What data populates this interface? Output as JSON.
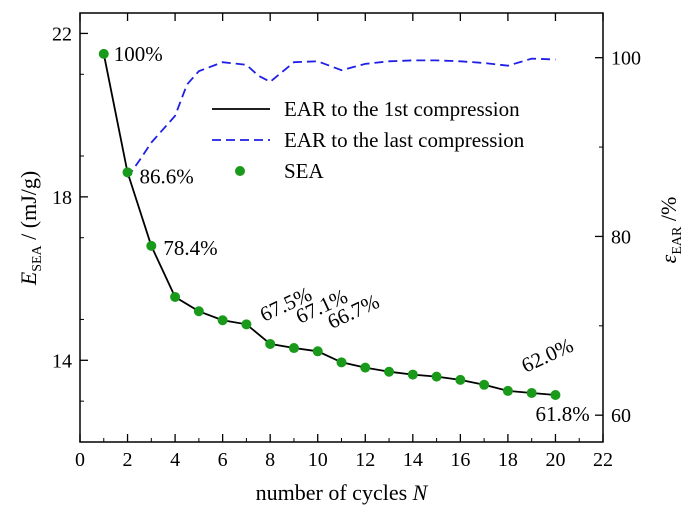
{
  "chart_data": {
    "type": "line",
    "title": "",
    "xlabel": {
      "text": "number of cycles ",
      "var": "N"
    },
    "ylabel_left": {
      "var": "E",
      "sub": "SEA",
      "rest": " / (mJ/g)"
    },
    "ylabel_right": {
      "var": "ε",
      "sub": "EAR",
      "rest": " /%"
    },
    "xlim": [
      0,
      22
    ],
    "ylim_left": [
      12,
      22.5
    ],
    "ylim_right": [
      57,
      105
    ],
    "x_ticks": [
      0,
      2,
      4,
      6,
      8,
      10,
      12,
      14,
      16,
      18,
      20,
      22
    ],
    "y_left_ticks": [
      14,
      18,
      22
    ],
    "y_right_ticks": [
      60,
      80,
      100
    ],
    "series": [
      {
        "name": "EAR to the 1st compression",
        "axis": "left",
        "style": "solid",
        "color": "#000000",
        "x": [
          1,
          2,
          3,
          4,
          5,
          6,
          7,
          8,
          9,
          10,
          11,
          12,
          13,
          14,
          15,
          16,
          17,
          18,
          19,
          20
        ],
        "y": [
          21.5,
          18.6,
          16.8,
          15.55,
          15.2,
          14.98,
          14.88,
          14.4,
          14.3,
          14.22,
          13.95,
          13.82,
          13.72,
          13.65,
          13.6,
          13.52,
          13.4,
          13.25,
          13.2,
          13.15
        ]
      },
      {
        "name": "EAR to the last compression",
        "axis": "right",
        "style": "dashed",
        "color": "#1f1fe6",
        "x": [
          2,
          2.5,
          3,
          3.5,
          4,
          4.5,
          5,
          6,
          7,
          7.5,
          8,
          9,
          10,
          11,
          12,
          13,
          14,
          15,
          16,
          17,
          18,
          19,
          20
        ],
        "y": [
          86.6,
          88.5,
          90.5,
          92.0,
          93.5,
          97.0,
          98.5,
          99.5,
          99.2,
          98.0,
          97.3,
          99.5,
          99.6,
          98.6,
          99.3,
          99.6,
          99.7,
          99.7,
          99.6,
          99.4,
          99.1,
          99.9,
          99.8
        ]
      },
      {
        "name": "SEA",
        "axis": "left",
        "style": "markers",
        "color": "#1a9a1a",
        "x": [
          1,
          2,
          3,
          4,
          5,
          6,
          7,
          8,
          9,
          10,
          11,
          12,
          13,
          14,
          15,
          16,
          17,
          18,
          19,
          20
        ],
        "y": [
          21.5,
          18.6,
          16.8,
          15.55,
          15.2,
          14.98,
          14.88,
          14.4,
          14.3,
          14.22,
          13.95,
          13.82,
          13.72,
          13.65,
          13.6,
          13.52,
          13.4,
          13.25,
          13.2,
          13.15
        ]
      }
    ],
    "annotations": [
      {
        "text": "100%",
        "x": 1,
        "y": 21.5
      },
      {
        "text": "86.6%",
        "x": 2,
        "y": 18.6
      },
      {
        "text": "78.4%",
        "x": 3,
        "y": 16.8
      },
      {
        "text": "67.5%",
        "x": 8,
        "y": 14.4
      },
      {
        "text": "67.1%",
        "x": 9,
        "y": 14.3
      },
      {
        "text": "66.7%",
        "x": 10,
        "y": 14.22
      },
      {
        "text": "62.0%",
        "x": 19,
        "y": 13.2
      },
      {
        "text": "61.8%",
        "x": 20,
        "y": 13.15
      }
    ],
    "legend": {
      "position": "upper-right",
      "entries": [
        "EAR to the 1st compression",
        "EAR to the last compression",
        "SEA"
      ]
    },
    "grid": false
  }
}
